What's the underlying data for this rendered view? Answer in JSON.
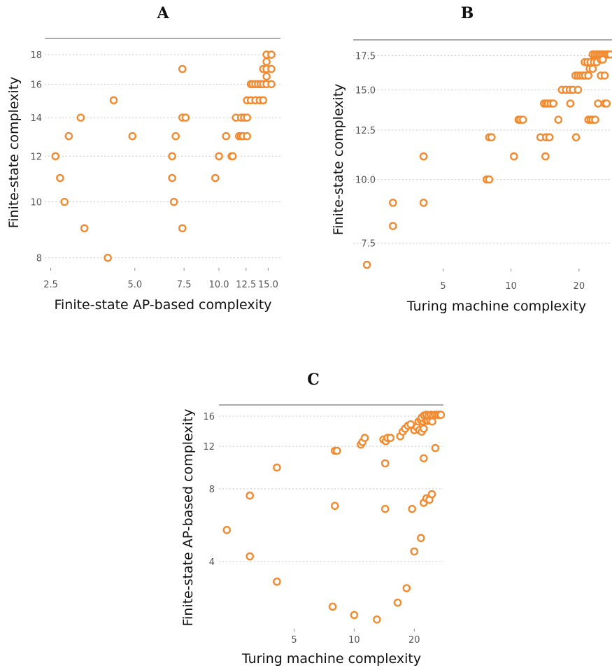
{
  "colors": {
    "marker": "#f28a30"
  },
  "chart_data": [
    {
      "id": "A",
      "type": "scatter",
      "title": "A",
      "xlabel": "Finite-state AP-based complexity",
      "ylabel": "Finite-state complexity",
      "xscale": "log",
      "yscale": "log",
      "xlim": [
        2.38,
        16.6
      ],
      "ylim": [
        7.6,
        19.2
      ],
      "xticks": [
        2.5,
        5.0,
        7.5,
        10.0,
        12.5,
        15.0
      ],
      "xtick_labels": [
        "2.5",
        "5.0",
        "7.5",
        "10.0",
        "12.5",
        "15.0"
      ],
      "yticks": [
        8,
        10,
        12,
        14,
        16,
        18
      ],
      "ytick_labels": [
        "8",
        "10",
        "12",
        "14",
        "16",
        "18"
      ],
      "grid": "horizontal",
      "points": [
        [
          2.6,
          12
        ],
        [
          2.7,
          11
        ],
        [
          2.8,
          10
        ],
        [
          2.9,
          13
        ],
        [
          3.2,
          14
        ],
        [
          3.3,
          9
        ],
        [
          4.0,
          8
        ],
        [
          4.2,
          15
        ],
        [
          4.9,
          13
        ],
        [
          6.8,
          12
        ],
        [
          6.8,
          11
        ],
        [
          6.9,
          10
        ],
        [
          7.0,
          13
        ],
        [
          7.4,
          9
        ],
        [
          7.4,
          17
        ],
        [
          7.4,
          14
        ],
        [
          7.6,
          14
        ],
        [
          9.7,
          11
        ],
        [
          10.0,
          12
        ],
        [
          10.6,
          13
        ],
        [
          11.1,
          12
        ],
        [
          11.2,
          12
        ],
        [
          11.5,
          14
        ],
        [
          11.8,
          13
        ],
        [
          12.0,
          13
        ],
        [
          12.2,
          13
        ],
        [
          12.6,
          13
        ],
        [
          12.0,
          14
        ],
        [
          12.3,
          14
        ],
        [
          12.6,
          14
        ],
        [
          12.6,
          15
        ],
        [
          13.0,
          15
        ],
        [
          13.5,
          15
        ],
        [
          14.0,
          15
        ],
        [
          14.4,
          15
        ],
        [
          13.0,
          16
        ],
        [
          13.2,
          16
        ],
        [
          13.5,
          16
        ],
        [
          13.8,
          16
        ],
        [
          14.1,
          16
        ],
        [
          14.4,
          16
        ],
        [
          14.8,
          16
        ],
        [
          15.4,
          16
        ],
        [
          14.4,
          17
        ],
        [
          14.8,
          17
        ],
        [
          15.4,
          17
        ],
        [
          14.8,
          16.5
        ],
        [
          14.8,
          17.5
        ],
        [
          14.8,
          18
        ],
        [
          15.4,
          18
        ]
      ]
    },
    {
      "id": "B",
      "type": "scatter",
      "title": "B",
      "xlabel": "Turing machine complexity",
      "ylabel": "Finite-state complexity",
      "xscale": "log",
      "yscale": "log",
      "xlim": [
        2.0,
        28.0
      ],
      "ylim": [
        6.6,
        18.8
      ],
      "xticks": [
        5,
        10,
        20
      ],
      "xtick_labels": [
        "5",
        "10",
        "20"
      ],
      "yticks": [
        7.5,
        10.0,
        12.5,
        15.0,
        17.5
      ],
      "ytick_labels": [
        "7.5",
        "10.0",
        "12.5",
        "15.0",
        "17.5"
      ],
      "grid": "horizontal",
      "points": [
        [
          2.3,
          6.8
        ],
        [
          3.0,
          8.1
        ],
        [
          3.0,
          9.0
        ],
        [
          4.1,
          9.0
        ],
        [
          4.1,
          11.1
        ],
        [
          7.8,
          10.0
        ],
        [
          8.0,
          10.0
        ],
        [
          8.0,
          12.1
        ],
        [
          8.2,
          12.1
        ],
        [
          10.3,
          11.1
        ],
        [
          10.8,
          13.1
        ],
        [
          11.0,
          13.1
        ],
        [
          11.3,
          13.1
        ],
        [
          13.5,
          12.1
        ],
        [
          14.2,
          11.1
        ],
        [
          14.3,
          12.1
        ],
        [
          14.8,
          12.1
        ],
        [
          14.0,
          14.1
        ],
        [
          14.3,
          14.1
        ],
        [
          14.6,
          14.1
        ],
        [
          15.0,
          14.1
        ],
        [
          15.4,
          14.1
        ],
        [
          16.2,
          13.1
        ],
        [
          16.8,
          15.0
        ],
        [
          17.5,
          15.0
        ],
        [
          18.2,
          15.0
        ],
        [
          18.8,
          15.0
        ],
        [
          18.3,
          14.1
        ],
        [
          19.4,
          12.1
        ],
        [
          19.8,
          15.0
        ],
        [
          19.3,
          16.0
        ],
        [
          19.8,
          16.0
        ],
        [
          20.3,
          16.0
        ],
        [
          20.8,
          16.0
        ],
        [
          21.3,
          16.0
        ],
        [
          22.0,
          16.0
        ],
        [
          25.0,
          16.0
        ],
        [
          26.0,
          16.0
        ],
        [
          21.2,
          17.0
        ],
        [
          21.8,
          17.0
        ],
        [
          22.5,
          17.0
        ],
        [
          23.3,
          17.0
        ],
        [
          24.0,
          17.0
        ],
        [
          22.3,
          16.5
        ],
        [
          23.0,
          16.5
        ],
        [
          22.0,
          13.1
        ],
        [
          22.5,
          13.1
        ],
        [
          23.0,
          13.1
        ],
        [
          23.6,
          13.1
        ],
        [
          24.3,
          14.1
        ],
        [
          26.0,
          14.1
        ],
        [
          26.5,
          14.1
        ],
        [
          23.0,
          17.6
        ],
        [
          23.5,
          17.6
        ],
        [
          24.0,
          17.6
        ],
        [
          24.5,
          17.6
        ],
        [
          25.0,
          17.6
        ],
        [
          25.5,
          17.6
        ],
        [
          26.0,
          17.6
        ],
        [
          26.5,
          17.6
        ],
        [
          27.0,
          17.6
        ],
        [
          27.5,
          17.6
        ],
        [
          25.0,
          17.2
        ],
        [
          25.5,
          17.2
        ]
      ]
    },
    {
      "id": "C",
      "type": "scatter",
      "title": "C",
      "xlabel": "Turing machine complexity",
      "ylabel": "Finite-state AP-based complexity",
      "xscale": "log",
      "yscale": "log",
      "xlim": [
        2.1,
        28.0
      ],
      "ylim": [
        2.05,
        17.8
      ],
      "xticks": [
        5,
        10,
        20
      ],
      "xtick_labels": [
        "5",
        "10",
        "20"
      ],
      "yticks": [
        4,
        8,
        12,
        16
      ],
      "ytick_labels": [
        "4",
        "8",
        "12",
        "16"
      ],
      "grid": "horizontal",
      "points": [
        [
          2.3,
          5.4
        ],
        [
          3.0,
          4.2
        ],
        [
          3.0,
          7.5
        ],
        [
          4.1,
          3.3
        ],
        [
          4.1,
          9.8
        ],
        [
          7.8,
          2.6
        ],
        [
          8.0,
          6.8
        ],
        [
          8.0,
          11.5
        ],
        [
          8.2,
          11.5
        ],
        [
          10.0,
          2.4
        ],
        [
          10.8,
          12.2
        ],
        [
          11.0,
          12.5
        ],
        [
          11.3,
          13.0
        ],
        [
          13.0,
          2.3
        ],
        [
          14.3,
          6.6
        ],
        [
          14.3,
          10.2
        ],
        [
          14.0,
          12.8
        ],
        [
          14.4,
          12.6
        ],
        [
          14.7,
          13.0
        ],
        [
          15.2,
          13.0
        ],
        [
          16.5,
          2.7
        ],
        [
          17.0,
          13.2
        ],
        [
          17.5,
          13.8
        ],
        [
          18.0,
          14.2
        ],
        [
          18.6,
          14.6
        ],
        [
          19.2,
          14.8
        ],
        [
          18.3,
          3.1
        ],
        [
          19.5,
          6.6
        ],
        [
          20.0,
          4.4
        ],
        [
          21.6,
          5.0
        ],
        [
          20.0,
          14.0
        ],
        [
          20.6,
          14.4
        ],
        [
          21.2,
          14.0
        ],
        [
          21.8,
          13.8
        ],
        [
          22.3,
          14.2
        ],
        [
          21.0,
          15.2
        ],
        [
          21.6,
          15.4
        ],
        [
          22.2,
          15.2
        ],
        [
          22.8,
          15.4
        ],
        [
          23.4,
          15.3
        ],
        [
          24.0,
          15.4
        ],
        [
          24.6,
          15.2
        ],
        [
          21.8,
          15.8
        ],
        [
          22.4,
          16.1
        ],
        [
          23.0,
          16.2
        ],
        [
          23.6,
          16.1
        ],
        [
          24.2,
          16.2
        ],
        [
          24.8,
          16.1
        ],
        [
          25.4,
          16.2
        ],
        [
          26.0,
          16.2
        ],
        [
          26.6,
          16.2
        ],
        [
          27.2,
          16.2
        ],
        [
          22.3,
          10.7
        ],
        [
          22.3,
          7.0
        ],
        [
          23.0,
          7.3
        ],
        [
          23.8,
          7.2
        ],
        [
          24.5,
          7.6
        ],
        [
          25.5,
          11.8
        ]
      ]
    }
  ]
}
